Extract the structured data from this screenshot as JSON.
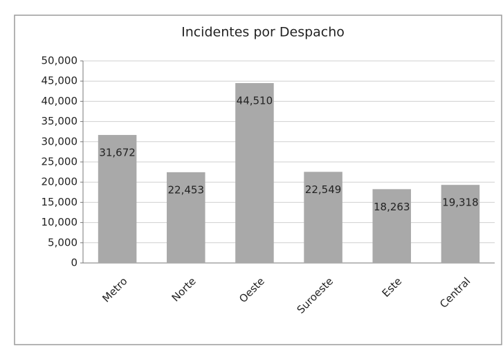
{
  "chart_data": {
    "type": "bar",
    "title": "Incidentes por Despacho",
    "categories": [
      "Metro",
      "Norte",
      "Oeste",
      "Suroeste",
      "Este",
      "Central"
    ],
    "values": [
      31672,
      22453,
      44510,
      22549,
      18263,
      19318
    ],
    "value_labels": [
      "31,672",
      "22,453",
      "44,510",
      "22,549",
      "18,263",
      "19,318"
    ],
    "color": "#a9a9a9",
    "ylim": [
      0,
      50000
    ],
    "yticks": [
      0,
      {
        "value": 5000,
        "label": "5,000"
      },
      {
        "value": 10000,
        "label": "10,000"
      },
      {
        "value": 15000,
        "label": "15,000"
      },
      {
        "value": 20000,
        "label": "20,000"
      },
      {
        "value": 25000,
        "label": "25,000"
      },
      {
        "value": 30000,
        "label": "30,000"
      },
      {
        "value": 35000,
        "label": "35,000"
      },
      {
        "value": 40000,
        "label": "40,000"
      },
      {
        "value": 45000,
        "label": "45,000"
      },
      {
        "value": 50000,
        "label": "50,000"
      }
    ],
    "grid": true
  }
}
